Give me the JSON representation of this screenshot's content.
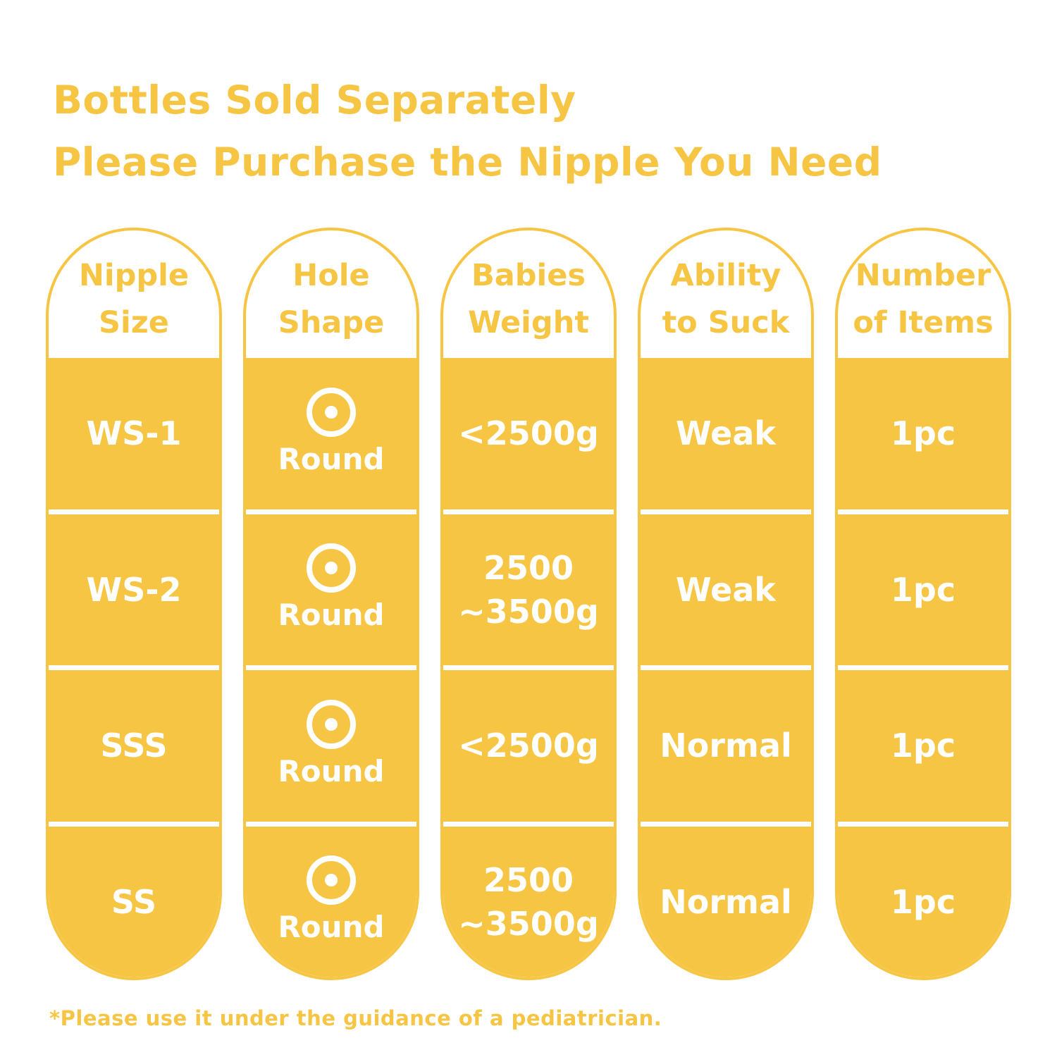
{
  "colors": {
    "accent": "#F7C544",
    "on_accent": "#FFFFFF",
    "background": "#FFFFFF"
  },
  "title": {
    "line1": "Bottles Sold Separately",
    "line2": "Please Purchase the Nipple You Need"
  },
  "footnote": "*Please use it under the guidance of a pediatrician.",
  "table": {
    "columns": [
      {
        "header": "Nipple\nSize",
        "cells": [
          "WS-1",
          "WS-2",
          "SSS",
          "SS"
        ]
      },
      {
        "header": "Hole\nShape",
        "icon": "round-hole-icon",
        "cells": [
          "Round",
          "Round",
          "Round",
          "Round"
        ]
      },
      {
        "header": "Babies\nWeight",
        "cells": [
          "<2500g",
          "2500\n~3500g",
          "<2500g",
          "2500\n~3500g"
        ]
      },
      {
        "header": "Ability\nto Suck",
        "cells": [
          "Weak",
          "Weak",
          "Normal",
          "Normal"
        ]
      },
      {
        "header": "Number\nof Items",
        "cells": [
          "1pc",
          "1pc",
          "1pc",
          "1pc"
        ]
      }
    ]
  },
  "chart_data": {
    "type": "table",
    "title": "Bottles Sold Separately — Please Purchase the Nipple You Need",
    "columns": [
      "Nipple Size",
      "Hole Shape",
      "Babies Weight",
      "Ability to Suck",
      "Number of Items"
    ],
    "rows": [
      [
        "WS-1",
        "Round",
        "<2500g",
        "Weak",
        "1pc"
      ],
      [
        "WS-2",
        "Round",
        "2500~3500g",
        "Weak",
        "1pc"
      ],
      [
        "SSS",
        "Round",
        "<2500g",
        "Normal",
        "1pc"
      ],
      [
        "SS",
        "Round",
        "2500~3500g",
        "Normal",
        "1pc"
      ]
    ],
    "footnote": "*Please use it under the guidance of a pediatrician."
  }
}
